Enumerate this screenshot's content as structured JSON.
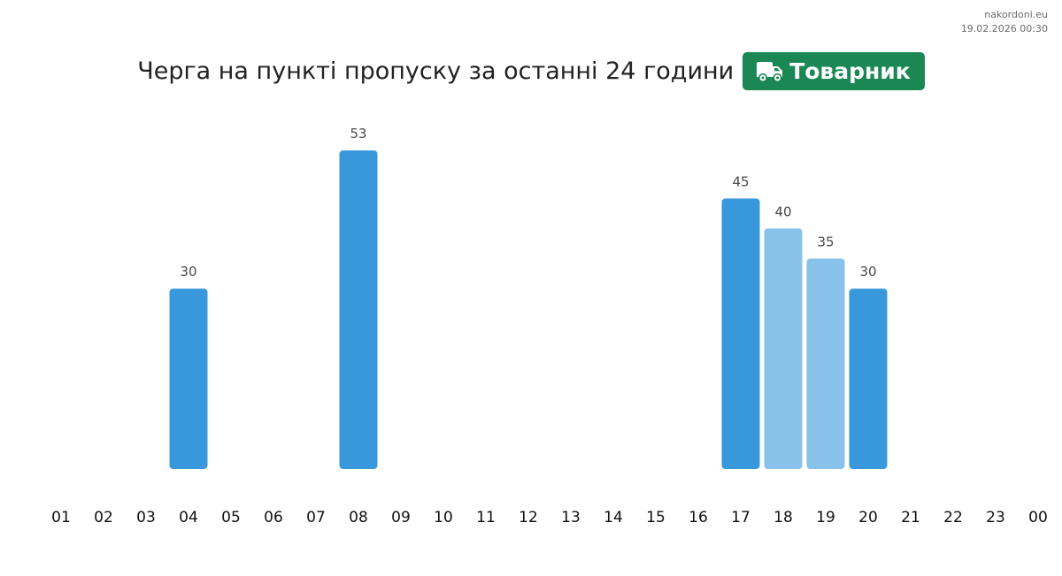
{
  "watermark": {
    "site": "nakordoni.eu",
    "datetime": "19.02.2026 00:30"
  },
  "header": {
    "title": "Черга на пункті пропуску за останні 24 години",
    "badge_label": "Товарник",
    "badge_icon": "truck-icon",
    "badge_color": "#1a8754"
  },
  "colors": {
    "bar_primary": "#3898db",
    "bar_light": "#88c1ea"
  },
  "chart_data": {
    "type": "bar",
    "categories": [
      "01",
      "02",
      "03",
      "04",
      "05",
      "06",
      "07",
      "08",
      "09",
      "10",
      "11",
      "12",
      "13",
      "14",
      "15",
      "16",
      "17",
      "18",
      "19",
      "20",
      "21",
      "22",
      "23",
      "00"
    ],
    "values": [
      null,
      null,
      null,
      30,
      null,
      null,
      null,
      53,
      null,
      null,
      null,
      null,
      null,
      null,
      null,
      null,
      45,
      40,
      35,
      30,
      null,
      null,
      null,
      null
    ],
    "light_bars": [
      "18",
      "19"
    ],
    "data_labels": true,
    "title": "",
    "xlabel": "",
    "ylabel": "",
    "ylim": [
      0,
      53
    ],
    "grid": false,
    "legend": false
  }
}
